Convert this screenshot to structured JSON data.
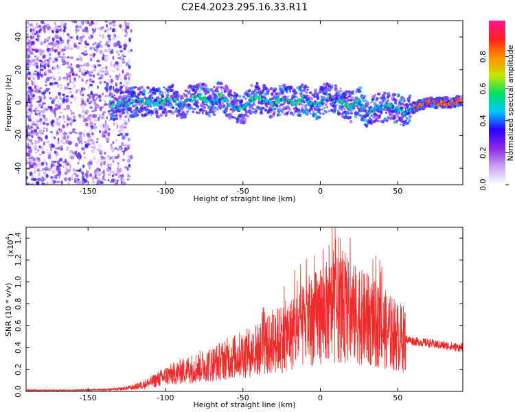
{
  "title": "C2E4.2023.295.16.33.R11",
  "chart_data": [
    {
      "type": "heatmap",
      "xlabel": "Height of straight line (km)",
      "ylabel": "Frequency (Hz)",
      "xlim": [
        -190,
        92
      ],
      "ylim": [
        -50,
        50
      ],
      "xticks": [
        -150,
        -100,
        -50,
        0,
        50
      ],
      "yticks": [
        -40,
        -20,
        0,
        20,
        40
      ],
      "colorbar": {
        "label": "Normalized spectral amplitude",
        "range": [
          0,
          1
        ],
        "ticks": [
          "0.0",
          "0.2",
          "0.4",
          "0.6",
          "0.8"
        ],
        "colors": [
          "#ffffff",
          "#c9a3f5",
          "#8a2be2",
          "#2a00ff",
          "#00c8ff",
          "#00e060",
          "#c8e600",
          "#ff8c00",
          "#ff2020",
          "#ff1493"
        ]
      },
      "track": {
        "x": [
          -135,
          -125,
          -115,
          -105,
          -95,
          -90,
          -85,
          -80,
          -75,
          -70,
          -65,
          -60,
          -55,
          -50,
          -45,
          -40,
          -35,
          -30,
          -25,
          -20,
          -15,
          -10,
          -5,
          0,
          5,
          10,
          15,
          20,
          25,
          30,
          35,
          40,
          45,
          50,
          55,
          60,
          65,
          70,
          75,
          80,
          85,
          90
        ],
        "y": [
          -2,
          0,
          1,
          0,
          2,
          -1,
          1,
          3,
          2,
          0,
          4,
          1,
          -3,
          -4,
          2,
          3,
          1,
          0,
          2,
          1,
          0,
          3,
          -2,
          0,
          4,
          2,
          0,
          -3,
          1,
          -6,
          -4,
          -3,
          -2,
          -4,
          -6,
          -3,
          -1,
          0,
          0,
          0,
          0,
          1
        ]
      }
    },
    {
      "type": "line",
      "xlabel": "Height of straight line (km)",
      "ylabel": "SNR (10 * v/v)",
      "yscale_label": "(x10",
      "yscale_exponent": "4",
      "yscale_suffix": ")",
      "xlim": [
        -190,
        92
      ],
      "ylim": [
        0,
        1.5
      ],
      "xticks": [
        -150,
        -100,
        -50,
        0,
        50
      ],
      "yticks": [
        0.0,
        0.2,
        0.4,
        0.6,
        0.8,
        1.0,
        1.2,
        1.4
      ],
      "series": [
        {
          "color": "#ee2a2a",
          "envelope_x": [
            -190,
            -160,
            -130,
            -120,
            -110,
            -100,
            -90,
            -80,
            -70,
            -60,
            -50,
            -40,
            -30,
            -20,
            -10,
            0,
            10,
            20,
            30,
            40,
            50,
            60,
            70,
            80,
            90,
            92
          ],
          "envelope_y": [
            0.01,
            0.01,
            0.02,
            0.04,
            0.08,
            0.14,
            0.18,
            0.22,
            0.25,
            0.3,
            0.34,
            0.38,
            0.45,
            0.52,
            0.6,
            0.7,
            0.75,
            0.72,
            0.65,
            0.58,
            0.5,
            0.46,
            0.44,
            0.42,
            0.4,
            0.4
          ]
        }
      ]
    }
  ]
}
